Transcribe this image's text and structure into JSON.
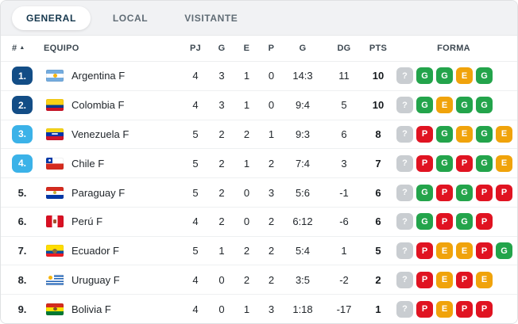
{
  "tabs": [
    {
      "label": "GENERAL",
      "active": true
    },
    {
      "label": "LOCAL",
      "active": false
    },
    {
      "label": "VISITANTE",
      "active": false
    }
  ],
  "table": {
    "columns": {
      "pos": "#",
      "sort_icon": "▲",
      "team": "EQUIPO",
      "pj": "PJ",
      "g": "G",
      "e": "E",
      "p": "P",
      "goals": "G",
      "dg": "DG",
      "pts": "PTS",
      "forma": "FORMA"
    },
    "rows": [
      {
        "pos": "1.",
        "badge": "navy",
        "flag": "argentina-flag",
        "team": "Argentina F",
        "pj": 4,
        "g": 3,
        "e": 1,
        "p": 0,
        "goals": "14:3",
        "dg": 11,
        "pts": 10,
        "forma": [
          "?",
          "G",
          "G",
          "E",
          "G"
        ]
      },
      {
        "pos": "2.",
        "badge": "navy",
        "flag": "colombia-flag",
        "team": "Colombia F",
        "pj": 4,
        "g": 3,
        "e": 1,
        "p": 0,
        "goals": "9:4",
        "dg": 5,
        "pts": 10,
        "forma": [
          "?",
          "G",
          "E",
          "G",
          "G"
        ]
      },
      {
        "pos": "3.",
        "badge": "cyan",
        "flag": "venezuela-flag",
        "team": "Venezuela F",
        "pj": 5,
        "g": 2,
        "e": 2,
        "p": 1,
        "goals": "9:3",
        "dg": 6,
        "pts": 8,
        "forma": [
          "?",
          "P",
          "G",
          "E",
          "G",
          "E"
        ]
      },
      {
        "pos": "4.",
        "badge": "cyan",
        "flag": "chile-flag",
        "team": "Chile F",
        "pj": 5,
        "g": 2,
        "e": 1,
        "p": 2,
        "goals": "7:4",
        "dg": 3,
        "pts": 7,
        "forma": [
          "?",
          "P",
          "G",
          "P",
          "G",
          "E"
        ]
      },
      {
        "pos": "5.",
        "badge": "none",
        "flag": "paraguay-flag",
        "team": "Paraguay F",
        "pj": 5,
        "g": 2,
        "e": 0,
        "p": 3,
        "goals": "5:6",
        "dg": -1,
        "pts": 6,
        "forma": [
          "?",
          "G",
          "P",
          "G",
          "P",
          "P"
        ]
      },
      {
        "pos": "6.",
        "badge": "none",
        "flag": "peru-flag",
        "team": "Perú F",
        "pj": 4,
        "g": 2,
        "e": 0,
        "p": 2,
        "goals": "6:12",
        "dg": -6,
        "pts": 6,
        "forma": [
          "?",
          "G",
          "P",
          "G",
          "P"
        ]
      },
      {
        "pos": "7.",
        "badge": "none",
        "flag": "ecuador-flag",
        "team": "Ecuador F",
        "pj": 5,
        "g": 1,
        "e": 2,
        "p": 2,
        "goals": "5:4",
        "dg": 1,
        "pts": 5,
        "forma": [
          "?",
          "P",
          "E",
          "E",
          "P",
          "G"
        ]
      },
      {
        "pos": "8.",
        "badge": "none",
        "flag": "uruguay-flag",
        "team": "Uruguay F",
        "pj": 4,
        "g": 0,
        "e": 2,
        "p": 2,
        "goals": "3:5",
        "dg": -2,
        "pts": 2,
        "forma": [
          "?",
          "P",
          "E",
          "P",
          "E"
        ]
      },
      {
        "pos": "9.",
        "badge": "none",
        "flag": "bolivia-flag",
        "team": "Bolivia F",
        "pj": 4,
        "g": 0,
        "e": 1,
        "p": 3,
        "goals": "1:18",
        "dg": -17,
        "pts": 1,
        "forma": [
          "?",
          "P",
          "E",
          "P",
          "P"
        ]
      }
    ]
  },
  "colors": {
    "pos_badge_navy": "#134d86",
    "pos_badge_cyan": "#3bb2e8",
    "form_win": "#23a44b",
    "form_draw": "#f0a30b",
    "form_loss": "#e01321",
    "form_unknown": "#c9cdd1"
  }
}
